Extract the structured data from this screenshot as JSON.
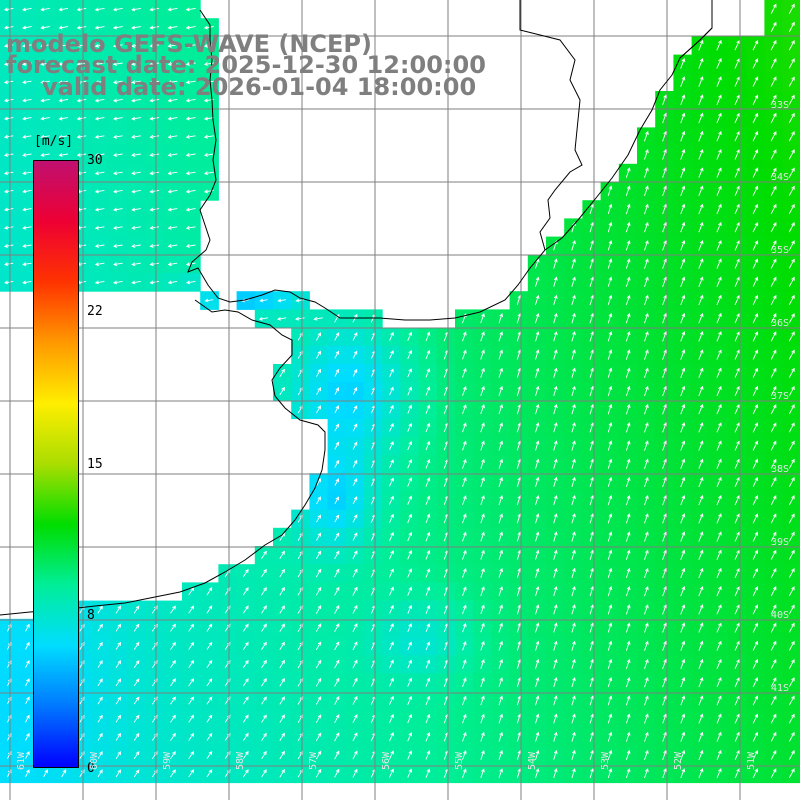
{
  "title": {
    "line1": "modelo GEFS-WAVE (NCEP)",
    "line2": "forecast date: 2025-12-30 12:00:00",
    "line3": "valid date: 2026-01-04 18:00:00"
  },
  "colorbar": {
    "unit": "[m/s]",
    "min": 0,
    "max": 30,
    "ticks": [
      "30",
      "22",
      "15",
      "8",
      "0"
    ],
    "tick_values": [
      30,
      22,
      15,
      8,
      0
    ],
    "colors": [
      "#0000ff",
      "#0077ff",
      "#00ddff",
      "#00ee99",
      "#00dd00",
      "#aadd00",
      "#ffee00",
      "#ff9900",
      "#ff3300",
      "#ee0033",
      "#c01070"
    ]
  },
  "map": {
    "land_color": "#ffffff",
    "grid_color": "#7f7f7f",
    "coast_color": "#000000",
    "arrow_color": "#ffffff",
    "lat_labels": [
      "33S",
      "34S",
      "35S",
      "36S",
      "37S",
      "38S",
      "39S",
      "40S",
      "41S"
    ],
    "lon_labels": [
      "61W",
      "60W",
      "59W",
      "58W",
      "57W",
      "56W",
      "55W",
      "54W",
      "53W",
      "52W",
      "51W"
    ]
  }
}
